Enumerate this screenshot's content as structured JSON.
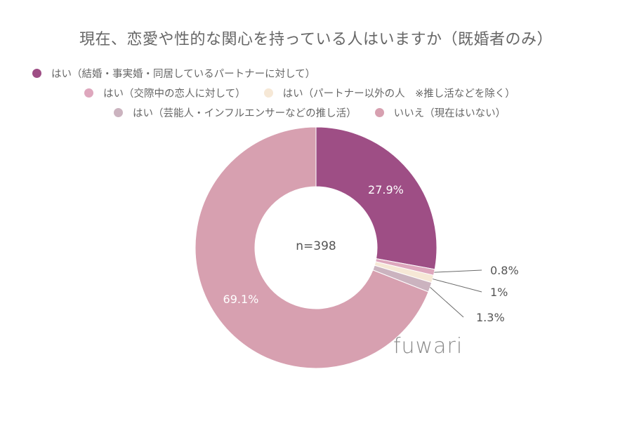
{
  "chart_data": {
    "type": "pie",
    "title": "現在、恋愛や性的な関心を持っている人はいますか（既婚者のみ）",
    "center_label": "n=398",
    "slices": [
      {
        "name": "はい（結婚・事実婚・同居しているパートナーに対して）",
        "value": 27.9,
        "label": "27.9%",
        "color": "#9e4e85"
      },
      {
        "name": "はい（交際中の恋人に対して）",
        "value": 0.8,
        "label": "0.8%",
        "color": "#dea7bd"
      },
      {
        "name": "はい（パートナー以外の人　※推し活などを除く）",
        "value": 1.0,
        "label": "1%",
        "color": "#f6e8d6"
      },
      {
        "name": "はい（芸能人・インフルエンサーなどの推し活）",
        "value": 1.3,
        "label": "1.3%",
        "color": "#cbb3bf"
      },
      {
        "name": "いいえ（現在はいない）",
        "value": 69.1,
        "label": "69.1%",
        "color": "#d7a0b0"
      }
    ],
    "legend_placement": "top"
  },
  "brand": "fuwari"
}
